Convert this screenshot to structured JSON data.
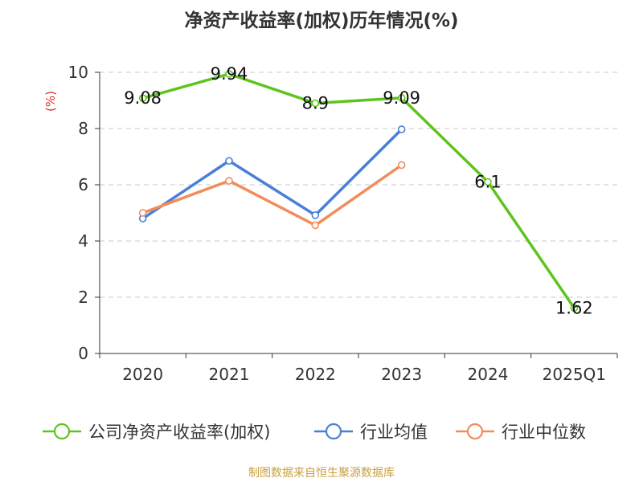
{
  "title": "净资产收益率(加权)历年情况(%)",
  "source_note": "制图数据来自恒生聚源数据库",
  "chart_data": {
    "type": "line",
    "title": "净资产收益率(加权)历年情况(%)",
    "ylabel": "(%)",
    "xlabel": "",
    "categories": [
      "2020",
      "2021",
      "2022",
      "2023",
      "2024",
      "2025Q1"
    ],
    "ylim": [
      0,
      10
    ],
    "yticks": [
      0,
      2,
      4,
      6,
      8,
      10
    ],
    "grid": true,
    "legend_position": "bottom",
    "series": [
      {
        "name": "公司净资产收益率(加权)",
        "color": "#5ec41e",
        "values": [
          9.08,
          9.94,
          8.9,
          9.09,
          6.1,
          1.62
        ],
        "data_labels": [
          "9.08",
          "9.94",
          "8.9",
          "9.09",
          "6.1",
          "1.62"
        ]
      },
      {
        "name": "行业均值",
        "color": "#4a7fd8",
        "values": [
          4.8,
          6.85,
          4.92,
          7.97,
          null,
          null
        ]
      },
      {
        "name": "行业中位数",
        "color": "#f28c5a",
        "values": [
          5.0,
          6.14,
          4.56,
          6.7,
          null,
          null
        ]
      }
    ]
  }
}
